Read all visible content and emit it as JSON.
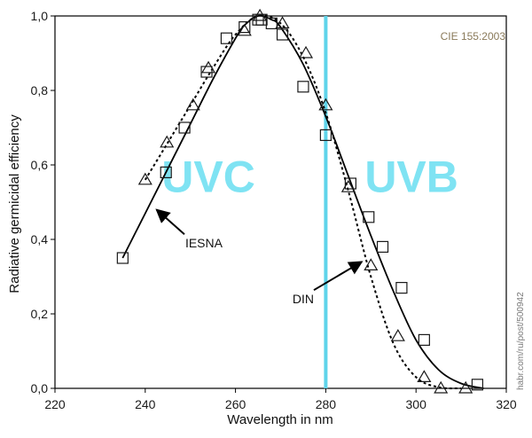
{
  "chart_data": {
    "type": "line",
    "xlabel": "Wavelength in nm",
    "ylabel": "Radiative germicidal efficiency",
    "xlim": [
      220,
      320
    ],
    "ylim": [
      0,
      1
    ],
    "x_ticks": [
      220,
      240,
      260,
      280,
      300,
      320
    ],
    "y_ticks": [
      "0,0",
      "0,2",
      "0,4",
      "0,6",
      "0,8",
      "1,0"
    ],
    "grid": false,
    "reference_line": {
      "x": 280,
      "color": "#5fd4ea"
    },
    "regions": [
      {
        "label": "UVC",
        "x": 254,
        "y": 0.57,
        "color": "#7fe3f3"
      },
      {
        "label": "UVB",
        "x": 299,
        "y": 0.57,
        "color": "#7fe3f3"
      }
    ],
    "badge": {
      "text": "CIE 155:2003",
      "color": "#8a7a5a"
    },
    "watermark": "habr.com/ru/post/500942",
    "series": [
      {
        "name": "IESNA",
        "style": "solid",
        "marker": "square",
        "curve_x": [
          235,
          240,
          245,
          250,
          255,
          260,
          262,
          265,
          268,
          270,
          275,
          280,
          285,
          290,
          295,
          300,
          305,
          310,
          315
        ],
        "curve_y": [
          0.35,
          0.47,
          0.59,
          0.71,
          0.83,
          0.94,
          0.975,
          1.0,
          0.99,
          0.97,
          0.87,
          0.73,
          0.57,
          0.41,
          0.26,
          0.13,
          0.05,
          0.013,
          0.0
        ],
        "points_x": [
          235,
          244.6,
          248.7,
          253.6,
          258,
          262,
          265,
          265.8,
          268,
          270.4,
          275,
          280,
          285.5,
          289.5,
          292.6,
          296.8,
          301.8,
          313.6
        ],
        "points_y": [
          0.35,
          0.58,
          0.7,
          0.85,
          0.94,
          0.97,
          0.99,
          0.99,
          0.98,
          0.95,
          0.81,
          0.68,
          0.55,
          0.46,
          0.38,
          0.27,
          0.13,
          0.01
        ]
      },
      {
        "name": "DIN",
        "style": "dashed",
        "marker": "triangle",
        "curve_x": [
          240,
          245,
          250,
          255,
          260,
          265,
          270,
          275,
          280,
          285,
          290,
          295,
          300,
          305,
          310
        ],
        "curve_y": [
          0.56,
          0.66,
          0.76,
          0.86,
          0.95,
          1.0,
          0.98,
          0.89,
          0.74,
          0.53,
          0.3,
          0.12,
          0.03,
          0.003,
          0.0
        ],
        "points_x": [
          240,
          244.8,
          250.6,
          254,
          262,
          265.4,
          270.4,
          275.6,
          280,
          285,
          290,
          296,
          301.8,
          305.5,
          311
        ],
        "points_y": [
          0.56,
          0.66,
          0.76,
          0.86,
          0.96,
          1.0,
          0.98,
          0.9,
          0.76,
          0.54,
          0.33,
          0.14,
          0.03,
          0.0,
          0.0
        ]
      }
    ],
    "annotations": [
      {
        "text": "IESNA",
        "x": 253,
        "y": 0.39,
        "arrow_to": [
          242.5,
          0.48
        ]
      },
      {
        "text": "DIN",
        "x": 275,
        "y": 0.24,
        "arrow_to": [
          288,
          0.34
        ]
      }
    ]
  }
}
